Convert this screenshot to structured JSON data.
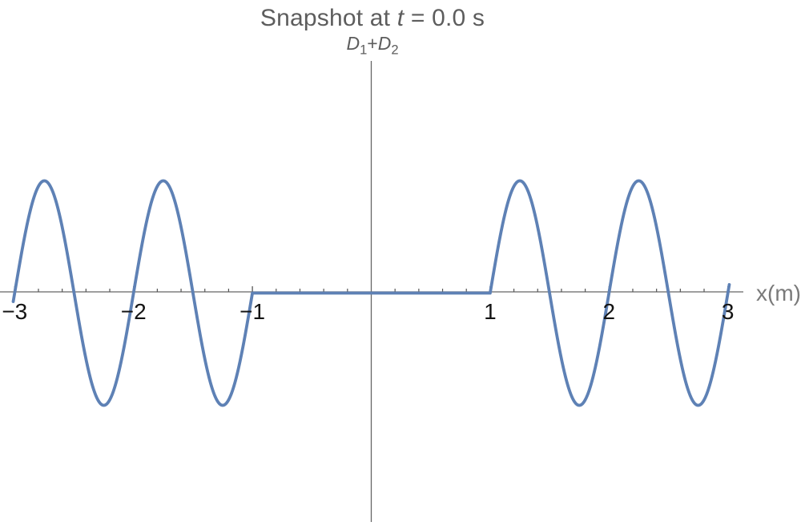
{
  "figure": {
    "title": {
      "prefix": "Snapshot at ",
      "italic_var": "t",
      "suffix": " = 0.0 s"
    },
    "y_axis_title": {
      "term1_base": "D",
      "term1_sub": "1",
      "operator": "+",
      "term2_base": "D",
      "term2_sub": "2"
    },
    "x_axis_label": "x(m)"
  },
  "colors": {
    "background": "#ffffff",
    "curve": "#5E81B5",
    "axis": "#666666",
    "tick": "#555555",
    "tick_labels": "#141414",
    "titles": "#5d5d5d",
    "axis_label": "#7a7a7a"
  },
  "chart_data": {
    "type": "line",
    "title": "Snapshot at t = 0.0 s",
    "subtitle": "D1+D2",
    "xlabel": "x(m)",
    "ylabel": "",
    "grid": false,
    "legend": false,
    "xlim": [
      -3.1,
      3.15
    ],
    "ylim": [
      -1.4,
      2.05
    ],
    "x_axis": {
      "major_ticks": [
        {
          "value": -3,
          "label": "−3"
        },
        {
          "value": -2,
          "label": "−2"
        },
        {
          "value": -1,
          "label": "−1"
        },
        {
          "value": 1,
          "label": "1"
        },
        {
          "value": 2,
          "label": "2"
        },
        {
          "value": 3,
          "label": "3"
        }
      ],
      "minor_tick_step": 0.2
    },
    "series": [
      {
        "name": "D1+D2",
        "color": "#5E81B5",
        "function": "D(x) = sin(2πx) for 1 ≤ |x| ≤ 3; D(x) = 0 for |x| < 1",
        "amplitude": 1,
        "wavelength": 1,
        "domain": [
          -3,
          3
        ],
        "quiet_zone": [
          -1,
          1
        ],
        "key_points": [
          [
            -3,
            0
          ],
          [
            -2.75,
            1
          ],
          [
            -2.5,
            0
          ],
          [
            -2.25,
            -1
          ],
          [
            -2,
            0
          ],
          [
            -1.75,
            1
          ],
          [
            -1.5,
            0
          ],
          [
            -1.25,
            -1
          ],
          [
            -1,
            0
          ],
          [
            0,
            0
          ],
          [
            1,
            0
          ],
          [
            1.25,
            1
          ],
          [
            1.5,
            0
          ],
          [
            1.75,
            -1
          ],
          [
            2,
            0
          ],
          [
            2.25,
            1
          ],
          [
            2.5,
            0
          ],
          [
            2.75,
            -1
          ],
          [
            3,
            0
          ]
        ]
      }
    ]
  }
}
